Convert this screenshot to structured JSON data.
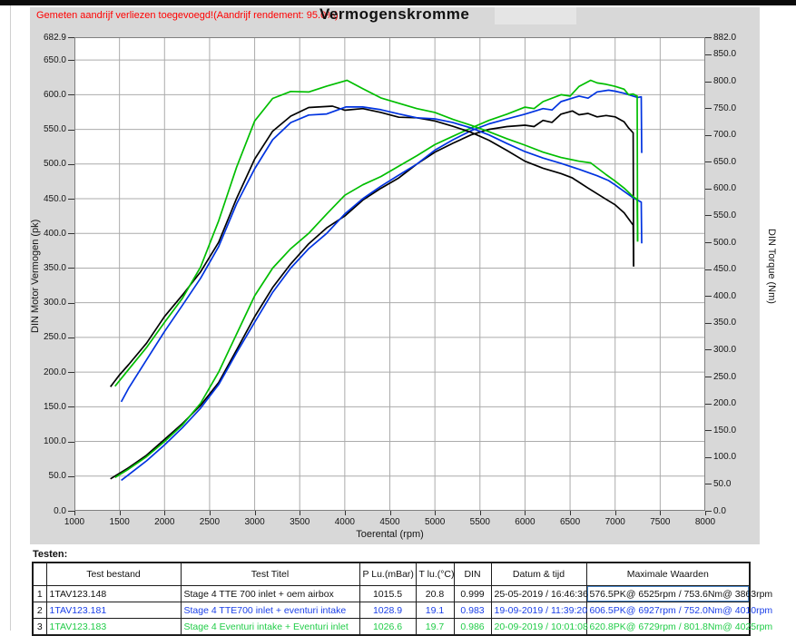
{
  "header": {
    "warning": "Gemeten aandrijf verliezen toegevoegd!(Aandrijf rendement: 95.0%)",
    "title": "Vermogenskromme"
  },
  "chart_data": {
    "type": "line",
    "title": "Vermogenskromme",
    "grid": true,
    "x_axis": {
      "label": "Toerental (rpm)",
      "min": 1000,
      "max": 8000,
      "ticks": [
        "1000",
        "1500",
        "2000",
        "2500",
        "3000",
        "3500",
        "4000",
        "4500",
        "5000",
        "5500",
        "6000",
        "6500",
        "7000",
        "7500",
        "8000"
      ]
    },
    "y_left": {
      "label": "DIN Motor Vermogen (pk)",
      "min": 0,
      "max": 682.9,
      "ticks": [
        "682.9",
        "650.0",
        "600.0",
        "550.0",
        "500.0",
        "450.0",
        "400.0",
        "350.0",
        "300.0",
        "250.0",
        "200.0",
        "150.0",
        "100.0",
        "50.0",
        "0.0"
      ]
    },
    "y_right": {
      "label": "DIN Torque (Nm)",
      "min": 0,
      "max": 882.0,
      "ticks": [
        "882.0",
        "850.0",
        "800.0",
        "750.0",
        "700.0",
        "650.0",
        "600.0",
        "550.0",
        "500.0",
        "450.0",
        "400.0",
        "350.0",
        "300.0",
        "250.0",
        "200.0",
        "150.0",
        "100.0",
        "50.0",
        "0.0"
      ]
    },
    "series": [
      {
        "name": "run1-power-pk",
        "run": "Stage 4 TTE 700  inlet + oem airbox",
        "axis": "left",
        "color": "#000000",
        "points": [
          [
            1400,
            46
          ],
          [
            1500,
            54
          ],
          [
            1600,
            62
          ],
          [
            1800,
            80
          ],
          [
            2000,
            103
          ],
          [
            2200,
            126
          ],
          [
            2400,
            152
          ],
          [
            2600,
            185
          ],
          [
            2800,
            232
          ],
          [
            3000,
            280
          ],
          [
            3200,
            322
          ],
          [
            3400,
            356
          ],
          [
            3600,
            385
          ],
          [
            3800,
            408
          ],
          [
            4000,
            425
          ],
          [
            4200,
            448
          ],
          [
            4400,
            465
          ],
          [
            4600,
            480
          ],
          [
            4800,
            500
          ],
          [
            5000,
            517
          ],
          [
            5200,
            530
          ],
          [
            5400,
            542
          ],
          [
            5600,
            550
          ],
          [
            5800,
            554
          ],
          [
            6000,
            556
          ],
          [
            6100,
            554
          ],
          [
            6200,
            563
          ],
          [
            6300,
            560
          ],
          [
            6400,
            572
          ],
          [
            6525,
            576.5
          ],
          [
            6600,
            571
          ],
          [
            6700,
            573
          ],
          [
            6800,
            568
          ],
          [
            6900,
            570
          ],
          [
            7000,
            568
          ],
          [
            7100,
            561
          ],
          [
            7150,
            552
          ],
          [
            7200,
            545
          ],
          [
            7205,
            352
          ]
        ]
      },
      {
        "name": "run2-power-pk",
        "run": "Stage 4 TTE700 inlet + eventuri intake",
        "axis": "left",
        "color": "#0033e0",
        "points": [
          [
            1520,
            44
          ],
          [
            1600,
            52
          ],
          [
            1800,
            72
          ],
          [
            2000,
            95
          ],
          [
            2200,
            120
          ],
          [
            2400,
            148
          ],
          [
            2600,
            182
          ],
          [
            2800,
            228
          ],
          [
            3000,
            272
          ],
          [
            3200,
            315
          ],
          [
            3400,
            350
          ],
          [
            3600,
            378
          ],
          [
            3800,
            400
          ],
          [
            4000,
            428
          ],
          [
            4200,
            450
          ],
          [
            4400,
            468
          ],
          [
            4600,
            484
          ],
          [
            4800,
            500
          ],
          [
            5000,
            520
          ],
          [
            5200,
            535
          ],
          [
            5400,
            548
          ],
          [
            5600,
            558
          ],
          [
            5800,
            565
          ],
          [
            6000,
            572
          ],
          [
            6200,
            580
          ],
          [
            6300,
            578
          ],
          [
            6400,
            590
          ],
          [
            6600,
            598
          ],
          [
            6700,
            595
          ],
          [
            6800,
            604
          ],
          [
            6927,
            606.5
          ],
          [
            7000,
            605
          ],
          [
            7100,
            602
          ],
          [
            7200,
            598
          ],
          [
            7250,
            596
          ],
          [
            7290,
            597
          ],
          [
            7295,
            516
          ]
        ]
      },
      {
        "name": "run3-power-pk",
        "run": "Stage 4 Eventuri intake + Eventuri inlet",
        "axis": "left",
        "color": "#00be00",
        "points": [
          [
            1450,
            48
          ],
          [
            1600,
            60
          ],
          [
            1800,
            78
          ],
          [
            2000,
            100
          ],
          [
            2200,
            124
          ],
          [
            2400,
            155
          ],
          [
            2600,
            200
          ],
          [
            2800,
            255
          ],
          [
            3000,
            310
          ],
          [
            3200,
            350
          ],
          [
            3400,
            378
          ],
          [
            3600,
            400
          ],
          [
            3800,
            428
          ],
          [
            4000,
            455
          ],
          [
            4200,
            470
          ],
          [
            4400,
            482
          ],
          [
            4600,
            497
          ],
          [
            4800,
            512
          ],
          [
            5000,
            528
          ],
          [
            5200,
            540
          ],
          [
            5400,
            552
          ],
          [
            5600,
            563
          ],
          [
            5800,
            572
          ],
          [
            6000,
            582
          ],
          [
            6100,
            580
          ],
          [
            6200,
            590
          ],
          [
            6400,
            600
          ],
          [
            6500,
            598
          ],
          [
            6600,
            612
          ],
          [
            6729,
            620.8
          ],
          [
            6800,
            617
          ],
          [
            6900,
            615
          ],
          [
            7000,
            612
          ],
          [
            7100,
            608
          ],
          [
            7150,
            600
          ],
          [
            7200,
            601
          ],
          [
            7245,
            598
          ],
          [
            7250,
            388
          ]
        ]
      },
      {
        "name": "run1-torque-nm",
        "run": "Stage 4 TTE 700  inlet + oem airbox",
        "axis": "right",
        "color": "#000000",
        "points": [
          [
            1400,
            231
          ],
          [
            1500,
            253
          ],
          [
            1600,
            272
          ],
          [
            1800,
            312
          ],
          [
            2000,
            362
          ],
          [
            2200,
            402
          ],
          [
            2400,
            445
          ],
          [
            2600,
            500
          ],
          [
            2800,
            582
          ],
          [
            3000,
            655
          ],
          [
            3200,
            707
          ],
          [
            3400,
            735
          ],
          [
            3600,
            751
          ],
          [
            3863,
            753.6
          ],
          [
            4000,
            746
          ],
          [
            4200,
            749
          ],
          [
            4400,
            742
          ],
          [
            4600,
            733
          ],
          [
            4800,
            732
          ],
          [
            5000,
            726
          ],
          [
            5200,
            716
          ],
          [
            5400,
            705
          ],
          [
            5600,
            690
          ],
          [
            5800,
            671
          ],
          [
            6000,
            651
          ],
          [
            6200,
            638
          ],
          [
            6400,
            628
          ],
          [
            6525,
            620
          ],
          [
            6700,
            601
          ],
          [
            6900,
            580
          ],
          [
            7000,
            570
          ],
          [
            7100,
            555
          ],
          [
            7200,
            532
          ],
          [
            7205,
            456
          ]
        ]
      },
      {
        "name": "run2-torque-nm",
        "run": "Stage 4 TTE700 inlet + eventuri intake",
        "axis": "right",
        "color": "#0033e0",
        "points": [
          [
            1520,
            203
          ],
          [
            1600,
            228
          ],
          [
            1800,
            281
          ],
          [
            2000,
            334
          ],
          [
            2200,
            383
          ],
          [
            2400,
            433
          ],
          [
            2600,
            492
          ],
          [
            2800,
            572
          ],
          [
            3000,
            637
          ],
          [
            3200,
            691
          ],
          [
            3400,
            723
          ],
          [
            3600,
            737
          ],
          [
            3800,
            739
          ],
          [
            4010,
            752
          ],
          [
            4200,
            752
          ],
          [
            4400,
            747
          ],
          [
            4600,
            739
          ],
          [
            4800,
            732
          ],
          [
            5000,
            730
          ],
          [
            5200,
            723
          ],
          [
            5400,
            713
          ],
          [
            5600,
            700
          ],
          [
            5800,
            684
          ],
          [
            6000,
            669
          ],
          [
            6200,
            657
          ],
          [
            6400,
            647
          ],
          [
            6600,
            636
          ],
          [
            6800,
            624
          ],
          [
            6927,
            615
          ],
          [
            7000,
            607
          ],
          [
            7100,
            595
          ],
          [
            7200,
            583
          ],
          [
            7290,
            575
          ],
          [
            7295,
            498
          ]
        ]
      },
      {
        "name": "run3-torque-nm",
        "run": "Stage 4 Eventuri intake + Eventuri inlet",
        "axis": "right",
        "color": "#00be00",
        "points": [
          [
            1450,
            232
          ],
          [
            1600,
            263
          ],
          [
            1800,
            304
          ],
          [
            2000,
            351
          ],
          [
            2200,
            396
          ],
          [
            2400,
            454
          ],
          [
            2600,
            540
          ],
          [
            2800,
            640
          ],
          [
            3000,
            726
          ],
          [
            3200,
            768
          ],
          [
            3400,
            781
          ],
          [
            3600,
            780
          ],
          [
            3800,
            791
          ],
          [
            4025,
            801.8
          ],
          [
            4200,
            786
          ],
          [
            4400,
            769
          ],
          [
            4600,
            759
          ],
          [
            4800,
            749
          ],
          [
            5000,
            742
          ],
          [
            5200,
            729
          ],
          [
            5400,
            718
          ],
          [
            5600,
            706
          ],
          [
            5800,
            693
          ],
          [
            6000,
            681
          ],
          [
            6200,
            668
          ],
          [
            6400,
            658
          ],
          [
            6600,
            651
          ],
          [
            6729,
            648
          ],
          [
            6900,
            626
          ],
          [
            7000,
            614
          ],
          [
            7100,
            601
          ],
          [
            7200,
            585
          ],
          [
            7245,
            580
          ],
          [
            7250,
            502
          ]
        ]
      }
    ]
  },
  "table": {
    "caption": "Testen:",
    "columns": [
      "",
      "Test bestand",
      "Test Titel",
      "P Lu.(mBar)",
      "T lu.(°C)",
      "DIN",
      "Datum & tijd",
      "Maximale Waarden"
    ],
    "rows": [
      {
        "num": "1",
        "file": "1TAV123.148",
        "title": "Stage 4 TTE 700  inlet + oem airbox",
        "p_lu": "1015.5",
        "t_lu": "20.8",
        "din": "0.999",
        "datetime": "25-05-2019 / 16:46:36",
        "max": "576.5PK@ 6525rpm / 753.6Nm@ 3863rpm",
        "color": "#111111",
        "selected": true
      },
      {
        "num": "2",
        "file": "1TAV123.181",
        "title": "Stage 4 TTE700 inlet + eventuri intake",
        "p_lu": "1028.9",
        "t_lu": "19.1",
        "din": "0.983",
        "datetime": "19-09-2019 / 11:39:20",
        "max": "606.5PK@ 6927rpm / 752.0Nm@ 4010rpm",
        "color": "#1a3fe8",
        "selected": false
      },
      {
        "num": "3",
        "file": "1TAV123.183",
        "title": "Stage 4 Eventuri intake + Eventuri inlet",
        "p_lu": "1026.6",
        "t_lu": "19.7",
        "din": "0.986",
        "datetime": "20-09-2019 / 10:01:08",
        "max": "620.8PK@ 6729rpm / 801.8Nm@ 4025rpm",
        "color": "#21cc48",
        "selected": false
      }
    ]
  },
  "colors": {
    "panel_bg": "#d8d8d8",
    "plot_bg": "#ffffff",
    "grid": "#ababab",
    "plot_border": "#7f7f7f",
    "warning_text": "#ff0000",
    "selection_outline": "#4a86c8"
  }
}
